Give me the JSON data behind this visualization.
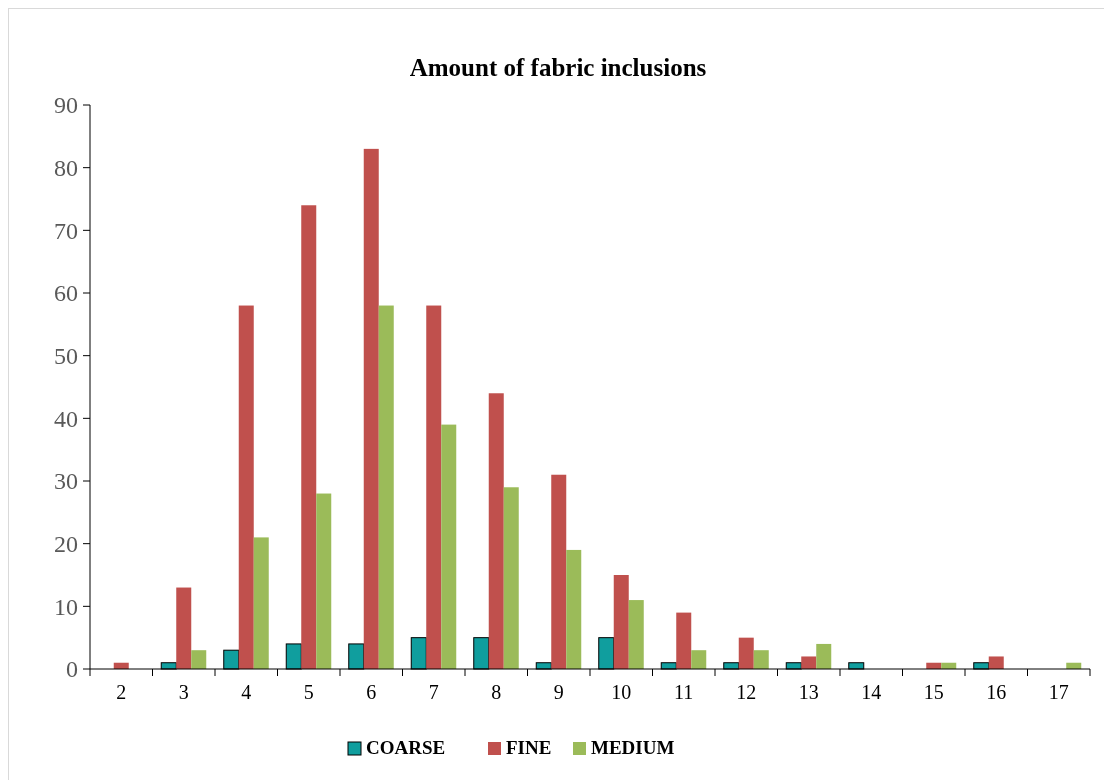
{
  "chart_data": {
    "type": "bar",
    "title": "Amount of fabric inclusions",
    "categories": [
      "2",
      "3",
      "4",
      "5",
      "6",
      "7",
      "8",
      "9",
      "10",
      "11",
      "12",
      "13",
      "14",
      "15",
      "16",
      "17"
    ],
    "series": [
      {
        "name": "COARSE",
        "color": "#109e9e",
        "values": [
          0,
          1,
          3,
          4,
          4,
          5,
          5,
          1,
          5,
          1,
          1,
          1,
          1,
          0,
          1,
          0
        ]
      },
      {
        "name": "FINE",
        "color": "#c0504d",
        "values": [
          1,
          13,
          58,
          74,
          83,
          58,
          44,
          31,
          15,
          9,
          5,
          2,
          0,
          1,
          2,
          0
        ]
      },
      {
        "name": "MEDIUM",
        "color": "#9bbb59",
        "values": [
          0,
          3,
          21,
          28,
          58,
          39,
          29,
          19,
          11,
          3,
          3,
          4,
          0,
          1,
          0,
          1
        ]
      }
    ],
    "ylim": [
      0,
      90
    ],
    "yticks": [
      0,
      10,
      20,
      30,
      40,
      50,
      60,
      70,
      80,
      90
    ],
    "grid": false,
    "legend": "bottom"
  }
}
